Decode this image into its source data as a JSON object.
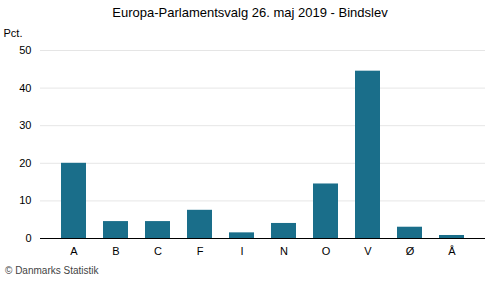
{
  "chart_data": {
    "type": "bar",
    "title": "Europa-Parlamentsvalg 26. maj 2019 - Bindslev",
    "categories": [
      "A",
      "B",
      "C",
      "F",
      "I",
      "N",
      "O",
      "V",
      "Ø",
      "Å"
    ],
    "values": [
      20.0,
      4.5,
      4.5,
      7.5,
      1.5,
      4.0,
      14.5,
      44.5,
      3.0,
      0.8
    ],
    "color": "#1a6e8a",
    "ylabel": "Pct.",
    "ylim": [
      0,
      50
    ],
    "yticks": [
      0,
      10,
      20,
      30,
      40,
      50
    ],
    "grid": true,
    "caption": "© Danmarks Statistik"
  }
}
